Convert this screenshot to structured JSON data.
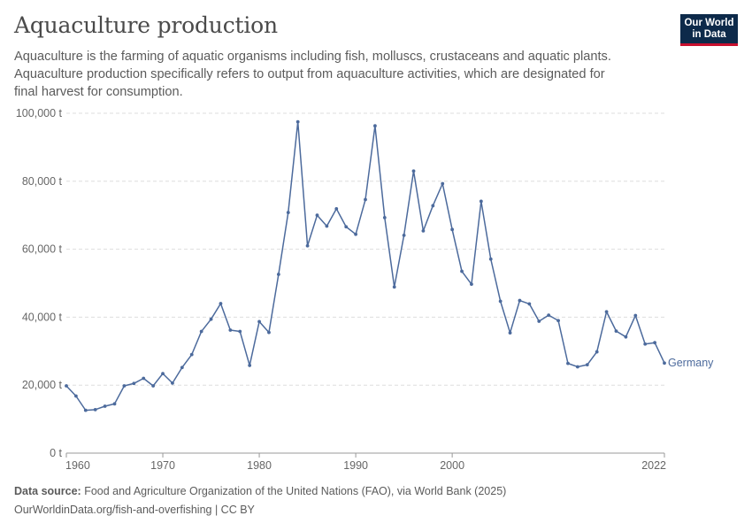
{
  "header": {
    "title": "Aquaculture production",
    "subtitle": "Aquaculture is the farming of aquatic organisms including fish, molluscs, crustaceans and aquatic plants. Aquaculture production specifically refers to output from aquaculture activities, which are designated for final harvest for consumption."
  },
  "logo": {
    "line1": "Our World",
    "line2": "in Data"
  },
  "footer": {
    "source_label": "Data source:",
    "source_text": "Food and Agriculture Organization of the United Nations (FAO), via World Bank (2025)",
    "url_text": "OurWorldinData.org/fish-and-overfishing | CC BY"
  },
  "colors": {
    "series": "#4c6a9c",
    "grid": "#dddddd",
    "logo_bg": "#0d2a4a",
    "logo_accent": "#c8102e"
  },
  "chart_data": {
    "type": "line",
    "title": "Aquaculture production",
    "xlim": [
      1960,
      2022
    ],
    "ylim": [
      0,
      100000
    ],
    "yticks": [
      0,
      20000,
      40000,
      60000,
      80000,
      100000
    ],
    "ytick_labels": [
      "0 t",
      "20,000 t",
      "40,000 t",
      "60,000 t",
      "80,000 t",
      "100,000 t"
    ],
    "xticks": [
      1960,
      1970,
      1980,
      1990,
      2000,
      2022
    ],
    "xtick_labels": [
      "1960",
      "1970",
      "1980",
      "1990",
      "2000",
      "2022"
    ],
    "grid": "horizontal dashed",
    "series": [
      {
        "name": "Germany",
        "x": [
          1960,
          1961,
          1962,
          1963,
          1964,
          1965,
          1966,
          1967,
          1968,
          1969,
          1970,
          1971,
          1972,
          1973,
          1974,
          1975,
          1976,
          1977,
          1978,
          1979,
          1980,
          1981,
          1982,
          1983,
          1984,
          1985,
          1986,
          1987,
          1988,
          1989,
          1990,
          1991,
          1992,
          1993,
          1994,
          1995,
          1996,
          1997,
          1998,
          1999,
          2000,
          2001,
          2002,
          2003,
          2004,
          2005,
          2006,
          2007,
          2008,
          2009,
          2010,
          2011,
          2012,
          2013,
          2014,
          2015,
          2016,
          2017,
          2018,
          2019,
          2020,
          2021,
          2022
        ],
        "values": [
          19800,
          16800,
          12600,
          12800,
          13800,
          14500,
          19800,
          20500,
          22000,
          19800,
          23400,
          20600,
          25200,
          29000,
          35800,
          39400,
          44000,
          36200,
          35800,
          25800,
          38700,
          35500,
          52600,
          70800,
          97500,
          61000,
          70000,
          66800,
          71900,
          66600,
          64400,
          74600,
          96300,
          69300,
          48900,
          64100,
          83000,
          65400,
          72800,
          79300,
          65800,
          53500,
          49700,
          74100,
          57100,
          44700,
          35400,
          44900,
          43900,
          38800,
          40600,
          39000,
          26400,
          25400,
          26000,
          29800,
          41600,
          35900,
          34200,
          40500,
          32100,
          32500,
          26500
        ]
      }
    ]
  }
}
